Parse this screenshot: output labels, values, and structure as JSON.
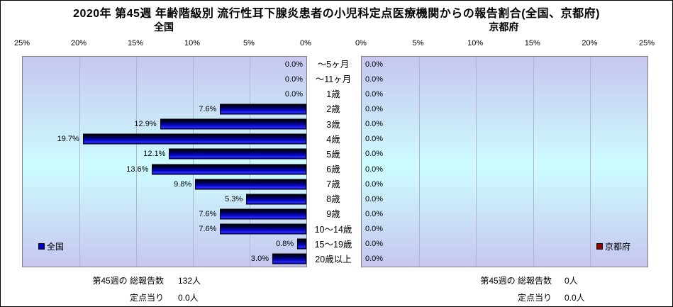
{
  "title": "2020年 第45週 年齢階級別 流行性耳下腺炎患者の小児科定点医療機関からの報告割合(全国、京都府)",
  "charts": {
    "left": {
      "subtitle": "全国",
      "legend_label": "全国",
      "footer": {
        "total_label": "第45週の 総報告数",
        "total_value": "132人",
        "per_label": "定点当り",
        "per_value": "0.0人"
      }
    },
    "right": {
      "subtitle": "京都府",
      "legend_label": "京都府",
      "footer": {
        "total_label": "第45週の 総報告数",
        "total_value": "0人",
        "per_label": "定点当り",
        "per_value": "0.0人"
      }
    }
  },
  "colors": {
    "bar_national": "#0000cc",
    "bar_kyoto": "#990000",
    "plot_bg_edge": "#c6c6ef",
    "plot_bg_center": "#ccffff",
    "plot_border": "#808080",
    "gridline": "#b4b4cc"
  },
  "chart_data": {
    "type": "bar",
    "orientation": "horizontal",
    "title": "2020年 第45週 年齢階級別 流行性耳下腺炎患者の小児科定点医療機関からの報告割合(全国、京都府)",
    "categories": [
      "～5ヶ月",
      "～11ヶ月",
      "1歳",
      "2歳",
      "3歳",
      "4歳",
      "5歳",
      "6歳",
      "7歳",
      "8歳",
      "9歳",
      "10～14歳",
      "15～19歳",
      "20歳以上"
    ],
    "series": [
      {
        "name": "全国",
        "color": "#0000cc",
        "values": [
          0.0,
          0.0,
          0.0,
          7.6,
          12.9,
          19.7,
          12.1,
          13.6,
          9.8,
          5.3,
          7.6,
          7.6,
          0.8,
          3.0
        ]
      },
      {
        "name": "京都府",
        "color": "#990000",
        "values": [
          0.0,
          0.0,
          0.0,
          0.0,
          0.0,
          0.0,
          0.0,
          0.0,
          0.0,
          0.0,
          0.0,
          0.0,
          0.0,
          0.0
        ]
      }
    ],
    "xlim": [
      0,
      25
    ],
    "left_axis_reversed": true,
    "ticks_left": [
      "25%",
      "20%",
      "15%",
      "10%",
      "5%",
      "0%"
    ],
    "ticks_right": [
      "0%",
      "5%",
      "10%",
      "15%",
      "20%",
      "25%"
    ],
    "grid": true,
    "value_label_suffix": "%",
    "legend_position": {
      "left_chart": "bottom-left-inside",
      "right_chart": "bottom-right-inside"
    }
  }
}
